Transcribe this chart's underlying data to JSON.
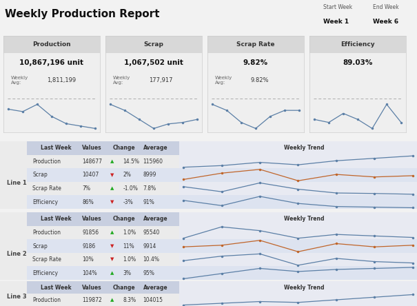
{
  "title": "Weekly Production Report",
  "start_week_label": "Start Week",
  "end_week_label": "End Week",
  "start_week": "Week 1",
  "end_week": "Week 6",
  "kpi_cards": [
    {
      "title": "Production",
      "value": "10,867,196 unit",
      "weekly_avg_label": "Weekly\nAvg:",
      "weekly_avg": "1,811,199",
      "sparkline": [
        1.8,
        1.75,
        1.9,
        1.65,
        1.5,
        1.45,
        1.4
      ]
    },
    {
      "title": "Scrap",
      "value": "1,067,502 unit",
      "weekly_avg_label": "Weekly\nAvg:",
      "weekly_avg": "177,917",
      "sparkline": [
        0.22,
        0.2,
        0.17,
        0.14,
        0.155,
        0.16,
        0.17
      ]
    },
    {
      "title": "Scrap Rate",
      "value": "9.82%",
      "weekly_avg_label": "Weekly\nAvg:",
      "weekly_avg": "9.82%",
      "sparkline": [
        11,
        10,
        8,
        7,
        9,
        10,
        10
      ]
    },
    {
      "title": "Efficiency",
      "value": "89.03%",
      "weekly_avg_label": "",
      "weekly_avg": "",
      "sparkline": [
        88,
        87,
        90,
        88,
        85,
        93,
        87
      ]
    }
  ],
  "lines": [
    {
      "name": "Line 1",
      "metrics": [
        {
          "label": "Production",
          "last_week": "148677",
          "arrow": "up",
          "change": "14.5%",
          "average": "115960",
          "trend": [
            1.0,
            1.1,
            1.3,
            1.15,
            1.4,
            1.55,
            1.7
          ],
          "color": "#5b7fa6"
        },
        {
          "label": "Scrap",
          "last_week": "10407",
          "arrow": "down",
          "change": "2%",
          "average": "8999",
          "trend": [
            0.95,
            1.2,
            1.35,
            0.9,
            1.15,
            1.05,
            1.1
          ],
          "color": "#c0652a"
        },
        {
          "label": "Scrap Rate",
          "last_week": "7%",
          "arrow": "up",
          "change": "-1.0%",
          "average": "7.8%",
          "trend": [
            0.95,
            0.75,
            1.1,
            0.85,
            0.7,
            0.68,
            0.65
          ],
          "color": "#5b7fa6"
        },
        {
          "label": "Efficiency",
          "last_week": "86%",
          "arrow": "down",
          "change": "-3%",
          "average": "91%",
          "trend": [
            0.92,
            0.75,
            1.05,
            0.82,
            0.72,
            0.7,
            0.68
          ],
          "color": "#5b7fa6"
        }
      ]
    },
    {
      "name": "Line 2",
      "metrics": [
        {
          "label": "Production",
          "last_week": "91856",
          "arrow": "up",
          "change": "1.0%",
          "average": "95540",
          "trend": [
            0.95,
            1.1,
            1.05,
            0.95,
            1.0,
            0.98,
            0.96
          ],
          "color": "#5b7fa6"
        },
        {
          "label": "Scrap",
          "last_week": "9186",
          "arrow": "down",
          "change": "11%",
          "average": "9914",
          "trend": [
            1.0,
            1.05,
            1.2,
            0.85,
            1.1,
            1.0,
            1.05
          ],
          "color": "#c0652a"
        },
        {
          "label": "Scrap Rate",
          "last_week": "10%",
          "arrow": "down",
          "change": "1.0%",
          "average": "10.4%",
          "trend": [
            0.9,
            1.0,
            1.05,
            0.8,
            0.95,
            0.88,
            0.85
          ],
          "color": "#5b7fa6"
        },
        {
          "label": "Efficiency",
          "last_week": "104%",
          "arrow": "up",
          "change": "3%",
          "average": "95%",
          "trend": [
            0.75,
            0.8,
            0.85,
            0.82,
            0.84,
            0.85,
            0.86
          ],
          "color": "#5b7fa6"
        }
      ]
    },
    {
      "name": "Line 3",
      "metrics": [
        {
          "label": "Production",
          "last_week": "119872",
          "arrow": "up",
          "change": "8.3%",
          "average": "104015",
          "trend": [
            0.95,
            1.05,
            1.15,
            1.1,
            1.25,
            1.4,
            1.55
          ],
          "color": "#5b7fa6"
        }
      ]
    }
  ],
  "bg_light": "#f2f2f2",
  "card_bg": "#efefef",
  "card_header_bg": "#d8d8d8",
  "section_bg": "#ebebeb",
  "row_alt_bg": "#dde3f0",
  "header_row_bg": "#c8cfe0",
  "trend_bg": "#e8eaf2",
  "weekly_trend_header": "Weekly Trend",
  "col_headers": [
    "Last Week",
    "Values",
    "Change",
    "Average"
  ]
}
